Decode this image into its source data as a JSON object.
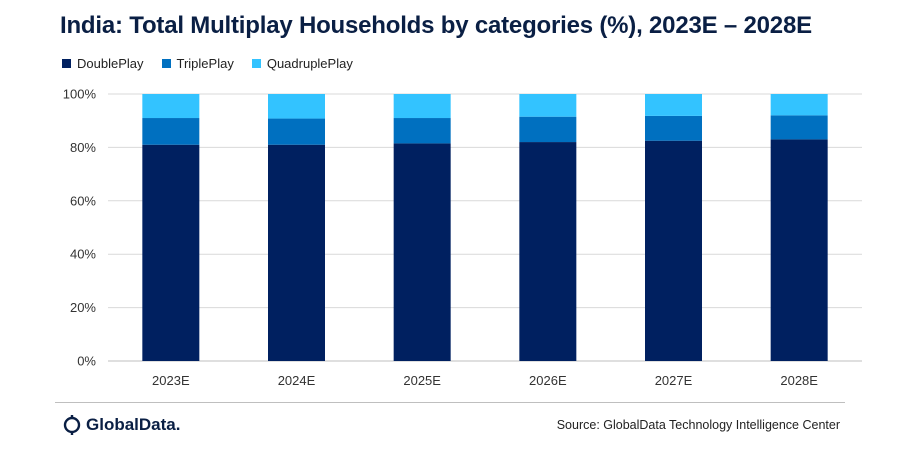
{
  "chart_data": {
    "type": "bar",
    "stacked": true,
    "title": "India: Total Multiplay Households by categories (%), 2023E – 2028E",
    "categories": [
      "2023E",
      "2024E",
      "2025E",
      "2026E",
      "2027E",
      "2028E"
    ],
    "series": [
      {
        "name": "DoublePlay",
        "color": "#002060",
        "values": [
          81,
          81,
          81.5,
          82,
          82.5,
          83
        ]
      },
      {
        "name": "TriplePlay",
        "color": "#0070c0",
        "values": [
          10,
          9.8,
          9.5,
          9.5,
          9.3,
          9
        ]
      },
      {
        "name": "QuadruplePlay",
        "color": "#33c3ff",
        "values": [
          9,
          9.2,
          9,
          8.5,
          8.2,
          8
        ]
      }
    ],
    "ylim": [
      0,
      100
    ],
    "yticks": [
      "0%",
      "20%",
      "40%",
      "60%",
      "80%",
      "100%"
    ],
    "ytick_values": [
      0,
      20,
      40,
      60,
      80,
      100
    ],
    "grid": true,
    "legend_position": "top-left"
  },
  "footer": {
    "logo_text": "GlobalData.",
    "source": "Source: GlobalData Technology Intelligence Center"
  }
}
